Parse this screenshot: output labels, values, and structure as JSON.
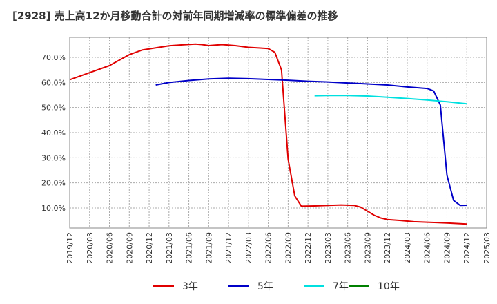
{
  "chart_data": {
    "type": "line",
    "title": "[2928]  売上高12か月移動合計の対前年同期増減率の標準偏差の推移",
    "xlabel": "",
    "ylabel": "",
    "x_ticks": [
      "2019/12",
      "2020/03",
      "2020/06",
      "2020/09",
      "2020/12",
      "2021/03",
      "2021/06",
      "2021/09",
      "2021/12",
      "2022/03",
      "2022/06",
      "2022/09",
      "2022/12",
      "2023/03",
      "2023/06",
      "2023/09",
      "2023/12",
      "2024/03",
      "2024/06",
      "2024/09",
      "2024/12",
      "2025/03"
    ],
    "y_ticks": [
      "10.0%",
      "20.0%",
      "30.0%",
      "40.0%",
      "50.0%",
      "60.0%",
      "70.0%"
    ],
    "y_tick_values": [
      10,
      20,
      30,
      40,
      50,
      60,
      70
    ],
    "ylim": [
      2,
      78
    ],
    "grid": true,
    "legend_position": "bottom",
    "series": [
      {
        "name": "3年",
        "color": "#e00000",
        "x": [
          "2019/12",
          "2020/03",
          "2020/06",
          "2020/07",
          "2020/09",
          "2020/11",
          "2021/01",
          "2021/03",
          "2021/05",
          "2021/07",
          "2021/08",
          "2021/09",
          "2021/11",
          "2022/01",
          "2022/03",
          "2022/05",
          "2022/06",
          "2022/07",
          "2022/08",
          "2022/09",
          "2022/10",
          "2022/11",
          "2023/01",
          "2023/03",
          "2023/05",
          "2023/07",
          "2023/08",
          "2023/09",
          "2023/10",
          "2023/11",
          "2023/12",
          "2024/02",
          "2024/04",
          "2024/06",
          "2024/09",
          "2024/12"
        ],
        "values": [
          61.1,
          63.9,
          66.7,
          68.2,
          71.1,
          73.0,
          73.8,
          74.6,
          75.0,
          75.3,
          75.1,
          74.7,
          75.1,
          74.7,
          74.0,
          73.7,
          73.5,
          72.0,
          65.0,
          29.4,
          14.8,
          10.7,
          10.8,
          11.0,
          11.2,
          11.0,
          10.3,
          8.7,
          7.1,
          6.0,
          5.4,
          5.0,
          4.5,
          4.3,
          4.0,
          3.6
        ]
      },
      {
        "name": "5年",
        "color": "#0000c8",
        "x": [
          "2021/01",
          "2021/03",
          "2021/06",
          "2021/09",
          "2021/12",
          "2022/03",
          "2022/06",
          "2022/09",
          "2022/12",
          "2023/03",
          "2023/06",
          "2023/09",
          "2023/12",
          "2024/03",
          "2024/06",
          "2024/07",
          "2024/08",
          "2024/09",
          "2024/10",
          "2024/11",
          "2024/12"
        ],
        "values": [
          59.0,
          60.0,
          60.8,
          61.4,
          61.7,
          61.5,
          61.2,
          60.9,
          60.5,
          60.2,
          59.8,
          59.4,
          59.0,
          58.2,
          57.6,
          56.6,
          51.0,
          23.0,
          13.0,
          11.0,
          11.1
        ]
      },
      {
        "name": "7年",
        "color": "#00e0e0",
        "x": [
          "2023/01",
          "2023/03",
          "2023/06",
          "2023/09",
          "2023/12",
          "2024/03",
          "2024/06",
          "2024/09",
          "2024/12"
        ],
        "values": [
          54.7,
          54.8,
          54.8,
          54.6,
          54.1,
          53.6,
          53.0,
          52.3,
          51.5
        ]
      },
      {
        "name": "10年",
        "color": "#008000",
        "x": [],
        "values": []
      }
    ]
  }
}
